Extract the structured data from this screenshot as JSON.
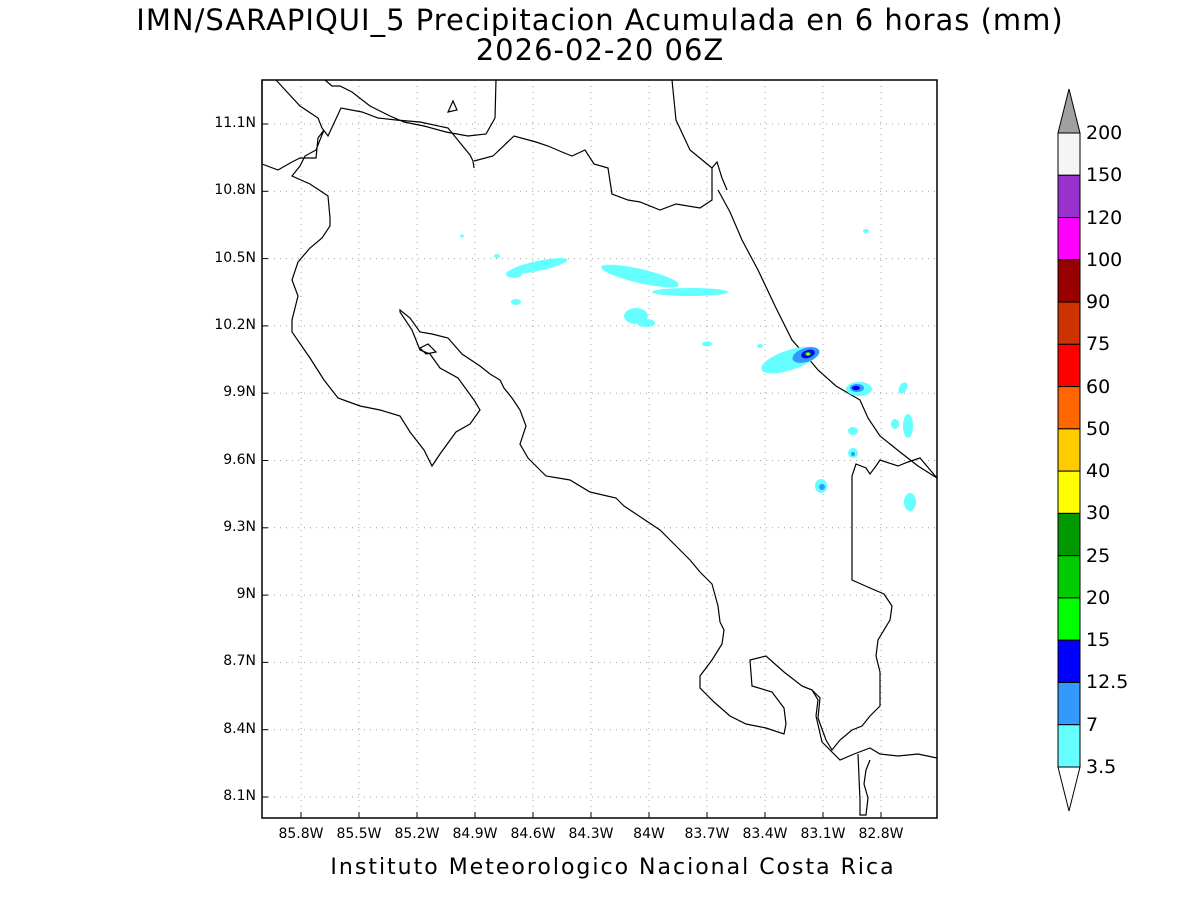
{
  "title": {
    "line1": "IMN/SARAPIQUI_5 Precipitacion Acumulada en 6 horas (mm)",
    "line2": "2026-02-20 06Z"
  },
  "credit": "Instituto Meteorologico Nacional Costa Rica",
  "map": {
    "lat_ticks": [
      "11.1N",
      "10.8N",
      "10.5N",
      "10.2N",
      "9.9N",
      "9.6N",
      "9.3N",
      "9N",
      "8.7N",
      "8.4N",
      "8.1N"
    ],
    "lon_ticks": [
      "85.8W",
      "85.5W",
      "85.2W",
      "84.9W",
      "84.6W",
      "84.3W",
      "84W",
      "83.7W",
      "83.4W",
      "83.1W",
      "82.8W"
    ],
    "lat_values": [
      11.1,
      10.8,
      10.5,
      10.2,
      9.9,
      9.6,
      9.3,
      9.0,
      8.7,
      8.4,
      8.1
    ],
    "lon_values": [
      -85.8,
      -85.5,
      -85.2,
      -84.9,
      -84.6,
      -84.3,
      -84.0,
      -83.7,
      -83.4,
      -83.1,
      -82.8
    ],
    "grid": true
  },
  "colorbar": {
    "levels": [
      "200",
      "150",
      "120",
      "100",
      "90",
      "75",
      "60",
      "50",
      "40",
      "30",
      "25",
      "20",
      "15",
      "12.5",
      "7",
      "3.5"
    ],
    "colors": [
      "#f5f5f5",
      "#9932cc",
      "#ff00ff",
      "#990000",
      "#cc3300",
      "#ff0000",
      "#ff6600",
      "#ffcc00",
      "#ffff00",
      "#009900",
      "#00cc00",
      "#00ff00",
      "#0000ff",
      "#3399ff",
      "#66ffff"
    ],
    "over_color": "#a0a0a0",
    "under_color": "#ffffff"
  }
}
